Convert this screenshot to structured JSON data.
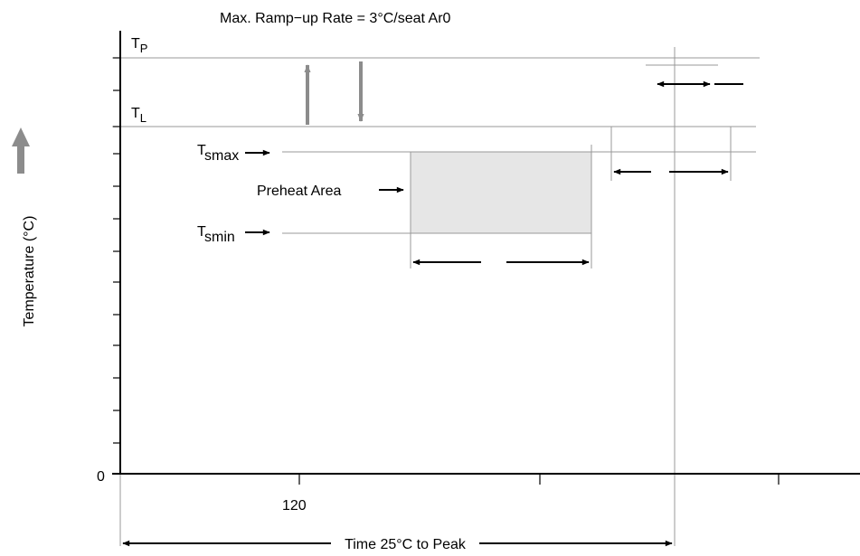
{
  "title": "Max. Ramp−up Rate = 3°C/seat Ar0",
  "y_axis_label": "Temperature (°C)",
  "x_axis_label": "Time 25°C to Peak",
  "origin_label": "0",
  "x_tick_label": "120",
  "levels": {
    "tp_main": "T",
    "tp_sub": "P",
    "tl_main": "T",
    "tl_sub": "L",
    "tsmax_main": "T",
    "tsmax_sub": "smax",
    "tsmin_main": "T",
    "tsmin_sub": "smin"
  },
  "preheat_label": "Preheat Area",
  "colors": {
    "axis": "#000000",
    "guide_line": "#999999",
    "preheat_fill": "#e6e6e6",
    "ramp_arrow": "#8c8c8c",
    "big_arrow": "#8c8c8c"
  }
}
